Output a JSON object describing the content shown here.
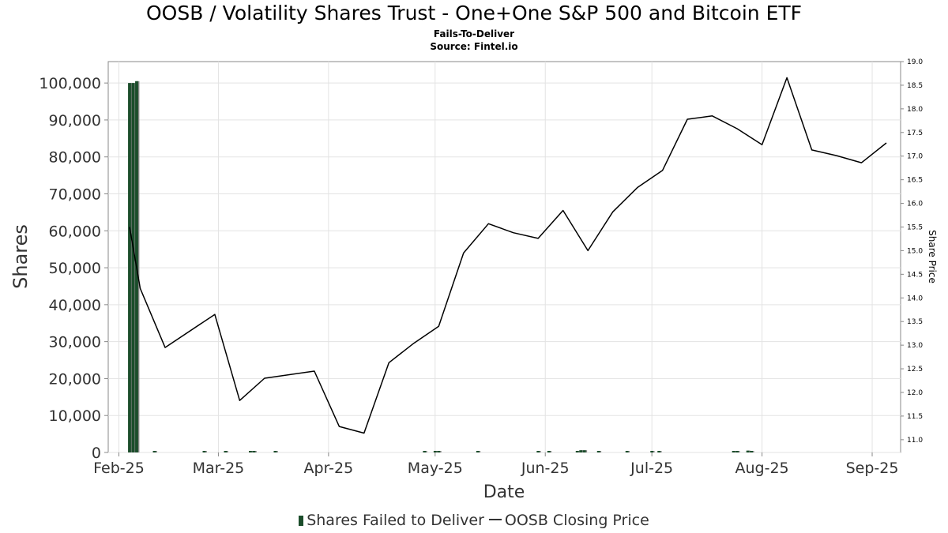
{
  "title": "OOSB / Volatility Shares Trust - One+One S&P 500 and Bitcoin ETF",
  "subtitle": "Fails-To-Deliver",
  "source": "Source: Fintel.io",
  "legend": {
    "bar_label": "Shares Failed to Deliver",
    "line_label": "OOSB Closing Price"
  },
  "colors": {
    "bar": "#1b4d2b",
    "bar_shadow": "#888888",
    "line": "#000000",
    "grid": "#e3e3e3"
  },
  "chart_data": {
    "type": "bar",
    "xlabel": "Date",
    "ylabel": "Shares",
    "y2label": "Share Price",
    "x_range": [
      "2025-01-29",
      "2025-09-09"
    ],
    "ylim": [
      0,
      105800
    ],
    "y2lim": [
      10.73,
      19.0
    ],
    "x_tick_dates": [
      "2025-02-01",
      "2025-03-01",
      "2025-04-01",
      "2025-05-01",
      "2025-06-01",
      "2025-07-01",
      "2025-08-01",
      "2025-09-01"
    ],
    "x_tick_labels": [
      "Feb-25",
      "Mar-25",
      "Apr-25",
      "May-25",
      "Jun-25",
      "Jul-25",
      "Aug-25",
      "Sep-25"
    ],
    "y_ticks": [
      0,
      10000,
      20000,
      30000,
      40000,
      50000,
      60000,
      70000,
      80000,
      90000,
      100000
    ],
    "y_tick_labels": [
      "0",
      "10,000",
      "20,000",
      "30,000",
      "40,000",
      "50,000",
      "60,000",
      "70,000",
      "80,000",
      "90,000",
      "100,000"
    ],
    "y2_ticks": [
      11.0,
      11.5,
      12.0,
      12.5,
      13.0,
      13.5,
      14.0,
      14.5,
      15.0,
      15.5,
      16.0,
      16.5,
      17.0,
      17.5,
      18.0,
      18.5,
      19.0
    ],
    "y2_tick_labels": [
      "11.0",
      "11.5",
      "12.0",
      "12.5",
      "13.0",
      "13.5",
      "14.0",
      "14.5",
      "15.0",
      "15.5",
      "16.0",
      "16.5",
      "17.0",
      "17.5",
      "18.0",
      "18.5",
      "19.0"
    ],
    "grid": true,
    "legend_position": "bottom",
    "series": [
      {
        "name": "Shares Failed to Deliver",
        "axis": "left",
        "type": "bar",
        "points": [
          {
            "x": "2025-02-04",
            "y": 100000
          },
          {
            "x": "2025-02-05",
            "y": 100000
          },
          {
            "x": "2025-02-06",
            "y": 100500
          },
          {
            "x": "2025-02-11",
            "y": 300
          },
          {
            "x": "2025-02-25",
            "y": 100
          },
          {
            "x": "2025-03-03",
            "y": 100
          },
          {
            "x": "2025-03-10",
            "y": 200
          },
          {
            "x": "2025-03-11",
            "y": 200
          },
          {
            "x": "2025-03-17",
            "y": 100
          },
          {
            "x": "2025-04-28",
            "y": 100
          },
          {
            "x": "2025-05-01",
            "y": 200
          },
          {
            "x": "2025-05-02",
            "y": 100
          },
          {
            "x": "2025-05-13",
            "y": 100
          },
          {
            "x": "2025-05-30",
            "y": 300
          },
          {
            "x": "2025-06-02",
            "y": 100
          },
          {
            "x": "2025-06-10",
            "y": 200
          },
          {
            "x": "2025-06-11",
            "y": 600
          },
          {
            "x": "2025-06-12",
            "y": 600
          },
          {
            "x": "2025-06-16",
            "y": 100
          },
          {
            "x": "2025-06-24",
            "y": 100
          },
          {
            "x": "2025-07-01",
            "y": 300
          },
          {
            "x": "2025-07-03",
            "y": 100
          },
          {
            "x": "2025-07-24",
            "y": 100
          },
          {
            "x": "2025-07-25",
            "y": 100
          },
          {
            "x": "2025-07-28",
            "y": 500
          },
          {
            "x": "2025-07-29",
            "y": 100
          }
        ]
      },
      {
        "name": "OOSB Closing Price",
        "axis": "right",
        "type": "line",
        "points": [
          {
            "x": "2025-02-04",
            "y": 15.5
          },
          {
            "x": "2025-02-07",
            "y": 14.2
          },
          {
            "x": "2025-02-14",
            "y": 12.95
          },
          {
            "x": "2025-02-28",
            "y": 13.65
          },
          {
            "x": "2025-03-07",
            "y": 11.83
          },
          {
            "x": "2025-03-14",
            "y": 12.3
          },
          {
            "x": "2025-03-28",
            "y": 12.45
          },
          {
            "x": "2025-04-04",
            "y": 11.28
          },
          {
            "x": "2025-04-11",
            "y": 11.14
          },
          {
            "x": "2025-04-18",
            "y": 12.63
          },
          {
            "x": "2025-04-25",
            "y": 13.04
          },
          {
            "x": "2025-05-02",
            "y": 13.4
          },
          {
            "x": "2025-05-09",
            "y": 14.95
          },
          {
            "x": "2025-05-16",
            "y": 15.57
          },
          {
            "x": "2025-05-23",
            "y": 15.38
          },
          {
            "x": "2025-05-30",
            "y": 15.26
          },
          {
            "x": "2025-06-06",
            "y": 15.85
          },
          {
            "x": "2025-06-13",
            "y": 15.0
          },
          {
            "x": "2025-06-20",
            "y": 15.82
          },
          {
            "x": "2025-06-27",
            "y": 16.34
          },
          {
            "x": "2025-07-04",
            "y": 16.7
          },
          {
            "x": "2025-07-11",
            "y": 17.78
          },
          {
            "x": "2025-07-18",
            "y": 17.85
          },
          {
            "x": "2025-07-25",
            "y": 17.58
          },
          {
            "x": "2025-08-01",
            "y": 17.24
          },
          {
            "x": "2025-08-08",
            "y": 18.66
          },
          {
            "x": "2025-08-15",
            "y": 17.13
          },
          {
            "x": "2025-08-22",
            "y": 17.01
          },
          {
            "x": "2025-08-29",
            "y": 16.86
          },
          {
            "x": "2025-09-05",
            "y": 17.28
          }
        ]
      }
    ]
  }
}
